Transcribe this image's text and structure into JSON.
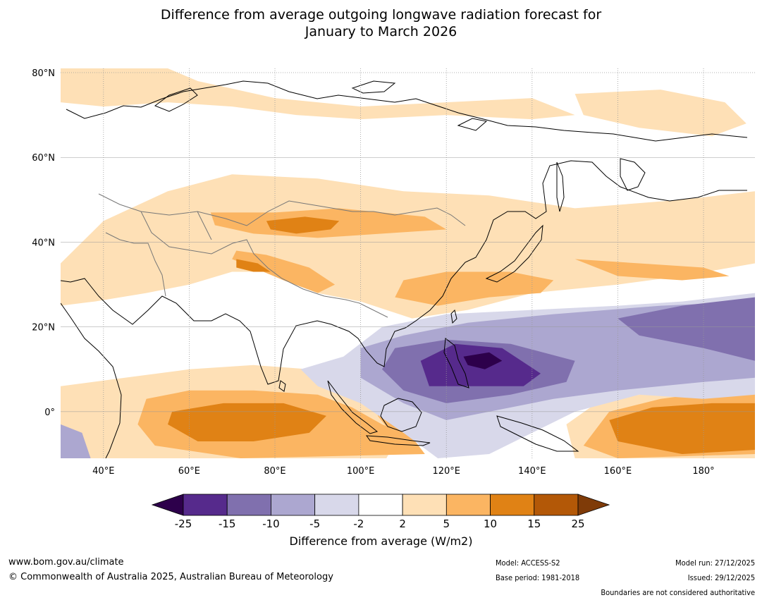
{
  "title_lines": [
    "Difference from average outgoing longwave radiation forecast for",
    "January to March 2026"
  ],
  "map": {
    "lon_range": [
      30,
      192
    ],
    "lat_range": [
      -11,
      81
    ],
    "lat_ticks": [
      {
        "value": 80,
        "label": "80°N"
      },
      {
        "value": 60,
        "label": "60°N"
      },
      {
        "value": 40,
        "label": "40°N"
      },
      {
        "value": 20,
        "label": "20°N"
      },
      {
        "value": 0,
        "label": "0°"
      }
    ],
    "lon_ticks": [
      {
        "value": 40,
        "label": "40°E"
      },
      {
        "value": 60,
        "label": "60°E"
      },
      {
        "value": 80,
        "label": "80°E"
      },
      {
        "value": 100,
        "label": "100°E"
      },
      {
        "value": 120,
        "label": "120°E"
      },
      {
        "value": 140,
        "label": "140°E"
      },
      {
        "value": 160,
        "label": "160°E"
      },
      {
        "value": 180,
        "label": "180°"
      }
    ]
  },
  "colorbar": {
    "ticks": [
      "-25",
      "-15",
      "-10",
      "-5",
      "-2",
      "2",
      "5",
      "10",
      "15",
      "25"
    ],
    "colors": [
      "#562a8c",
      "#8070ae",
      "#aca7d0",
      "#d8d8ea",
      "#ffffff",
      "#fee0b6",
      "#fbb562",
      "#e08215",
      "#b35807"
    ],
    "under_color": "#2d004b",
    "over_color": "#7f3b08",
    "label": "Difference from average (W/m2)"
  },
  "anomaly_zones": [
    {
      "name": "siberia-north",
      "level": 5,
      "points": [
        [
          30,
          81
        ],
        [
          55,
          81
        ],
        [
          62,
          78
        ],
        [
          80,
          74
        ],
        [
          100,
          72
        ],
        [
          120,
          73
        ],
        [
          140,
          74
        ],
        [
          150,
          70
        ],
        [
          140,
          69
        ],
        [
          120,
          70
        ],
        [
          100,
          69
        ],
        [
          85,
          70
        ],
        [
          70,
          72
        ],
        [
          55,
          73
        ],
        [
          40,
          72
        ],
        [
          30,
          73
        ]
      ]
    },
    {
      "name": "northeast-band",
      "level": 5,
      "points": [
        [
          150,
          75
        ],
        [
          170,
          76
        ],
        [
          185,
          73
        ],
        [
          190,
          68
        ],
        [
          182,
          65
        ],
        [
          165,
          67
        ],
        [
          152,
          70
        ]
      ]
    },
    {
      "name": "central-asia-broad",
      "level": 5,
      "points": [
        [
          40,
          45
        ],
        [
          55,
          52
        ],
        [
          70,
          56
        ],
        [
          90,
          55
        ],
        [
          110,
          52
        ],
        [
          130,
          51
        ],
        [
          150,
          48
        ],
        [
          175,
          50
        ],
        [
          192,
          52
        ],
        [
          192,
          35
        ],
        [
          175,
          32
        ],
        [
          160,
          30
        ],
        [
          140,
          28
        ],
        [
          125,
          24
        ],
        [
          112,
          22
        ],
        [
          100,
          26
        ],
        [
          90,
          28
        ],
        [
          78,
          33
        ],
        [
          70,
          33
        ],
        [
          60,
          30
        ],
        [
          50,
          28
        ],
        [
          38,
          26
        ],
        [
          30,
          25
        ],
        [
          30,
          35
        ]
      ]
    },
    {
      "name": "central-asia-moderate",
      "level": 10,
      "points": [
        [
          65,
          47
        ],
        [
          80,
          47
        ],
        [
          95,
          48
        ],
        [
          115,
          46
        ],
        [
          120,
          43
        ],
        [
          105,
          42
        ],
        [
          90,
          41
        ],
        [
          75,
          42
        ],
        [
          66,
          44
        ]
      ]
    },
    {
      "name": "tibet-moderate",
      "level": 10,
      "points": [
        [
          71,
          38
        ],
        [
          78,
          37
        ],
        [
          88,
          34
        ],
        [
          94,
          30
        ],
        [
          90,
          28
        ],
        [
          82,
          31
        ],
        [
          75,
          34
        ],
        [
          70,
          36
        ]
      ]
    },
    {
      "name": "china-moderate",
      "level": 10,
      "points": [
        [
          110,
          31
        ],
        [
          120,
          33
        ],
        [
          135,
          33
        ],
        [
          145,
          31
        ],
        [
          142,
          28
        ],
        [
          130,
          27
        ],
        [
          118,
          25
        ],
        [
          108,
          27
        ]
      ]
    },
    {
      "name": "north-pacific-moderate",
      "level": 10,
      "points": [
        [
          150,
          36
        ],
        [
          165,
          35
        ],
        [
          180,
          34
        ],
        [
          186,
          32
        ],
        [
          175,
          31
        ],
        [
          160,
          32
        ]
      ]
    },
    {
      "name": "tarim-strong",
      "level": 15,
      "points": [
        [
          78,
          45
        ],
        [
          87,
          46
        ],
        [
          95,
          45
        ],
        [
          93,
          43
        ],
        [
          85,
          42
        ],
        [
          79,
          43
        ]
      ]
    },
    {
      "name": "pamir-strong",
      "level": 15,
      "points": [
        [
          71,
          36
        ],
        [
          76,
          35
        ],
        [
          79,
          33
        ],
        [
          75,
          33
        ],
        [
          71,
          34
        ]
      ]
    },
    {
      "name": "indian-ocean-weak",
      "level": 5,
      "points": [
        [
          30,
          6
        ],
        [
          45,
          8
        ],
        [
          60,
          10
        ],
        [
          75,
          11
        ],
        [
          88,
          10
        ],
        [
          100,
          6
        ],
        [
          108,
          3
        ],
        [
          110,
          -4
        ],
        [
          106,
          -11
        ],
        [
          30,
          -11
        ]
      ]
    },
    {
      "name": "indian-ocean-moderate",
      "level": 10,
      "points": [
        [
          50,
          3
        ],
        [
          60,
          5
        ],
        [
          75,
          5
        ],
        [
          90,
          4
        ],
        [
          98,
          1
        ],
        [
          105,
          -3
        ],
        [
          112,
          -6
        ],
        [
          115,
          -10
        ],
        [
          72,
          -11
        ],
        [
          52,
          -8
        ],
        [
          48,
          -3
        ]
      ]
    },
    {
      "name": "indian-ocean-strong",
      "level": 15,
      "points": [
        [
          56,
          0
        ],
        [
          68,
          2
        ],
        [
          82,
          2
        ],
        [
          92,
          -1
        ],
        [
          88,
          -5
        ],
        [
          75,
          -7
        ],
        [
          62,
          -7
        ],
        [
          55,
          -3
        ]
      ]
    },
    {
      "name": "maritime-moderate",
      "level": 10,
      "points": [
        [
          105,
          3
        ],
        [
          112,
          2
        ],
        [
          118,
          -2
        ],
        [
          115,
          -6
        ],
        [
          108,
          -6
        ],
        [
          104,
          -1
        ]
      ]
    },
    {
      "name": "maritime-strong",
      "level": 15,
      "points": [
        [
          110,
          -1
        ],
        [
          114,
          -2
        ],
        [
          116,
          -5
        ],
        [
          112,
          -5
        ]
      ]
    },
    {
      "name": "pacific-weak",
      "level": 5,
      "points": [
        [
          150,
          -11
        ],
        [
          148,
          -3
        ],
        [
          155,
          2
        ],
        [
          170,
          5
        ],
        [
          185,
          7
        ],
        [
          192,
          8
        ],
        [
          192,
          -11
        ]
      ]
    },
    {
      "name": "pacific-moderate",
      "level": 10,
      "points": [
        [
          152,
          -8
        ],
        [
          158,
          0
        ],
        [
          170,
          3
        ],
        [
          185,
          5
        ],
        [
          192,
          6
        ],
        [
          192,
          -10
        ],
        [
          160,
          -11
        ]
      ]
    },
    {
      "name": "pacific-strong",
      "level": 15,
      "points": [
        [
          158,
          -2
        ],
        [
          168,
          1
        ],
        [
          182,
          2
        ],
        [
          192,
          2
        ],
        [
          192,
          -9
        ],
        [
          175,
          -10
        ],
        [
          160,
          -7
        ]
      ]
    },
    {
      "name": "tropics-weak-neg",
      "level": -2,
      "points": [
        [
          86,
          10
        ],
        [
          96,
          13
        ],
        [
          105,
          20
        ],
        [
          120,
          23
        ],
        [
          140,
          24
        ],
        [
          160,
          25
        ],
        [
          175,
          26
        ],
        [
          192,
          28
        ],
        [
          192,
          4
        ],
        [
          180,
          3
        ],
        [
          165,
          4
        ],
        [
          150,
          0
        ],
        [
          140,
          -5
        ],
        [
          130,
          -10
        ],
        [
          118,
          -11
        ],
        [
          110,
          -5
        ],
        [
          100,
          2
        ],
        [
          90,
          6
        ]
      ]
    },
    {
      "name": "tropics-neg",
      "level": -5,
      "points": [
        [
          100,
          15
        ],
        [
          110,
          18
        ],
        [
          125,
          21
        ],
        [
          145,
          23
        ],
        [
          170,
          25
        ],
        [
          192,
          26
        ],
        [
          192,
          8
        ],
        [
          180,
          7
        ],
        [
          160,
          5
        ],
        [
          145,
          3
        ],
        [
          130,
          0
        ],
        [
          120,
          -2
        ],
        [
          110,
          2
        ],
        [
          100,
          8
        ]
      ]
    },
    {
      "name": "tropics-mid-neg",
      "level": -10,
      "points": [
        [
          108,
          15
        ],
        [
          120,
          17
        ],
        [
          135,
          16
        ],
        [
          150,
          12
        ],
        [
          148,
          7
        ],
        [
          135,
          4
        ],
        [
          120,
          2
        ],
        [
          110,
          5
        ],
        [
          105,
          10
        ]
      ]
    },
    {
      "name": "philippines-strong-neg",
      "level": -15,
      "points": [
        [
          114,
          12
        ],
        [
          122,
          16
        ],
        [
          133,
          15
        ],
        [
          142,
          9
        ],
        [
          138,
          6
        ],
        [
          125,
          6
        ],
        [
          116,
          6
        ]
      ]
    },
    {
      "name": "philippines-peak-neg",
      "level": -25,
      "points": [
        [
          124,
          13
        ],
        [
          130,
          14
        ],
        [
          133,
          12
        ],
        [
          129,
          10
        ],
        [
          125,
          11
        ]
      ]
    },
    {
      "name": "pacific-east-neg",
      "level": -10,
      "points": [
        [
          160,
          22
        ],
        [
          175,
          25
        ],
        [
          192,
          27
        ],
        [
          192,
          12
        ],
        [
          180,
          15
        ],
        [
          165,
          18
        ]
      ]
    },
    {
      "name": "se-africa-neg",
      "level": -5,
      "points": [
        [
          30,
          -3
        ],
        [
          35,
          -5
        ],
        [
          37,
          -11
        ],
        [
          30,
          -11
        ]
      ]
    }
  ],
  "footer": {
    "left_lines": [
      "www.bom.gov.au/climate",
      "© Commonwealth of Australia 2025, Australian Bureau of Meteorology"
    ],
    "mid_lines": [
      "Model: ACCESS-S2",
      "Base period: 1981-2018"
    ],
    "right_lines": [
      "Model run: 27/12/2025",
      "Issued: 29/12/2025",
      "Boundaries are not considered authoritative"
    ]
  }
}
